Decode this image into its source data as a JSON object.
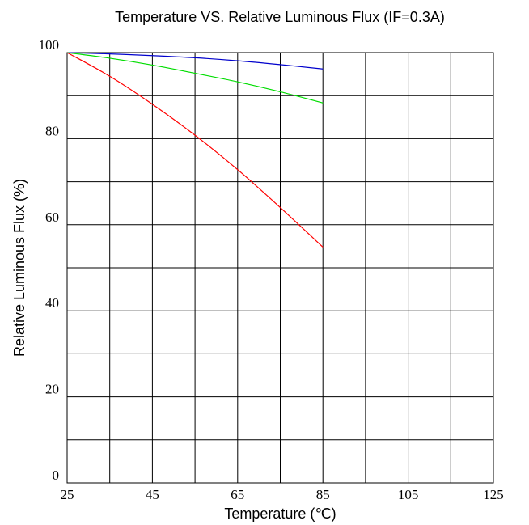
{
  "chart_data": {
    "type": "line",
    "title": "Temperature  VS.  Relative Luminous Flux (IF=0.3A)",
    "xlabel": "Temperature (℃)",
    "ylabel": "Relative Luminous Flux (%)",
    "xlim": [
      25,
      125
    ],
    "ylim": [
      0,
      100
    ],
    "xticks": [
      25,
      45,
      65,
      85,
      105,
      125
    ],
    "yticks": [
      0,
      20,
      40,
      60,
      80,
      100
    ],
    "grid": true,
    "x": [
      25,
      35,
      45,
      55,
      65,
      75,
      85
    ],
    "series": [
      {
        "color": "#0000cc",
        "values": [
          100,
          99.7,
          99.3,
          98.8,
          98.1,
          97.2,
          96.2
        ]
      },
      {
        "color": "#00dd00",
        "values": [
          100,
          98.7,
          97.1,
          95.2,
          93.2,
          90.9,
          88.3
        ]
      },
      {
        "color": "#ff0000",
        "values": [
          100,
          94.5,
          88.0,
          80.8,
          72.8,
          64.0,
          54.8
        ]
      }
    ]
  }
}
